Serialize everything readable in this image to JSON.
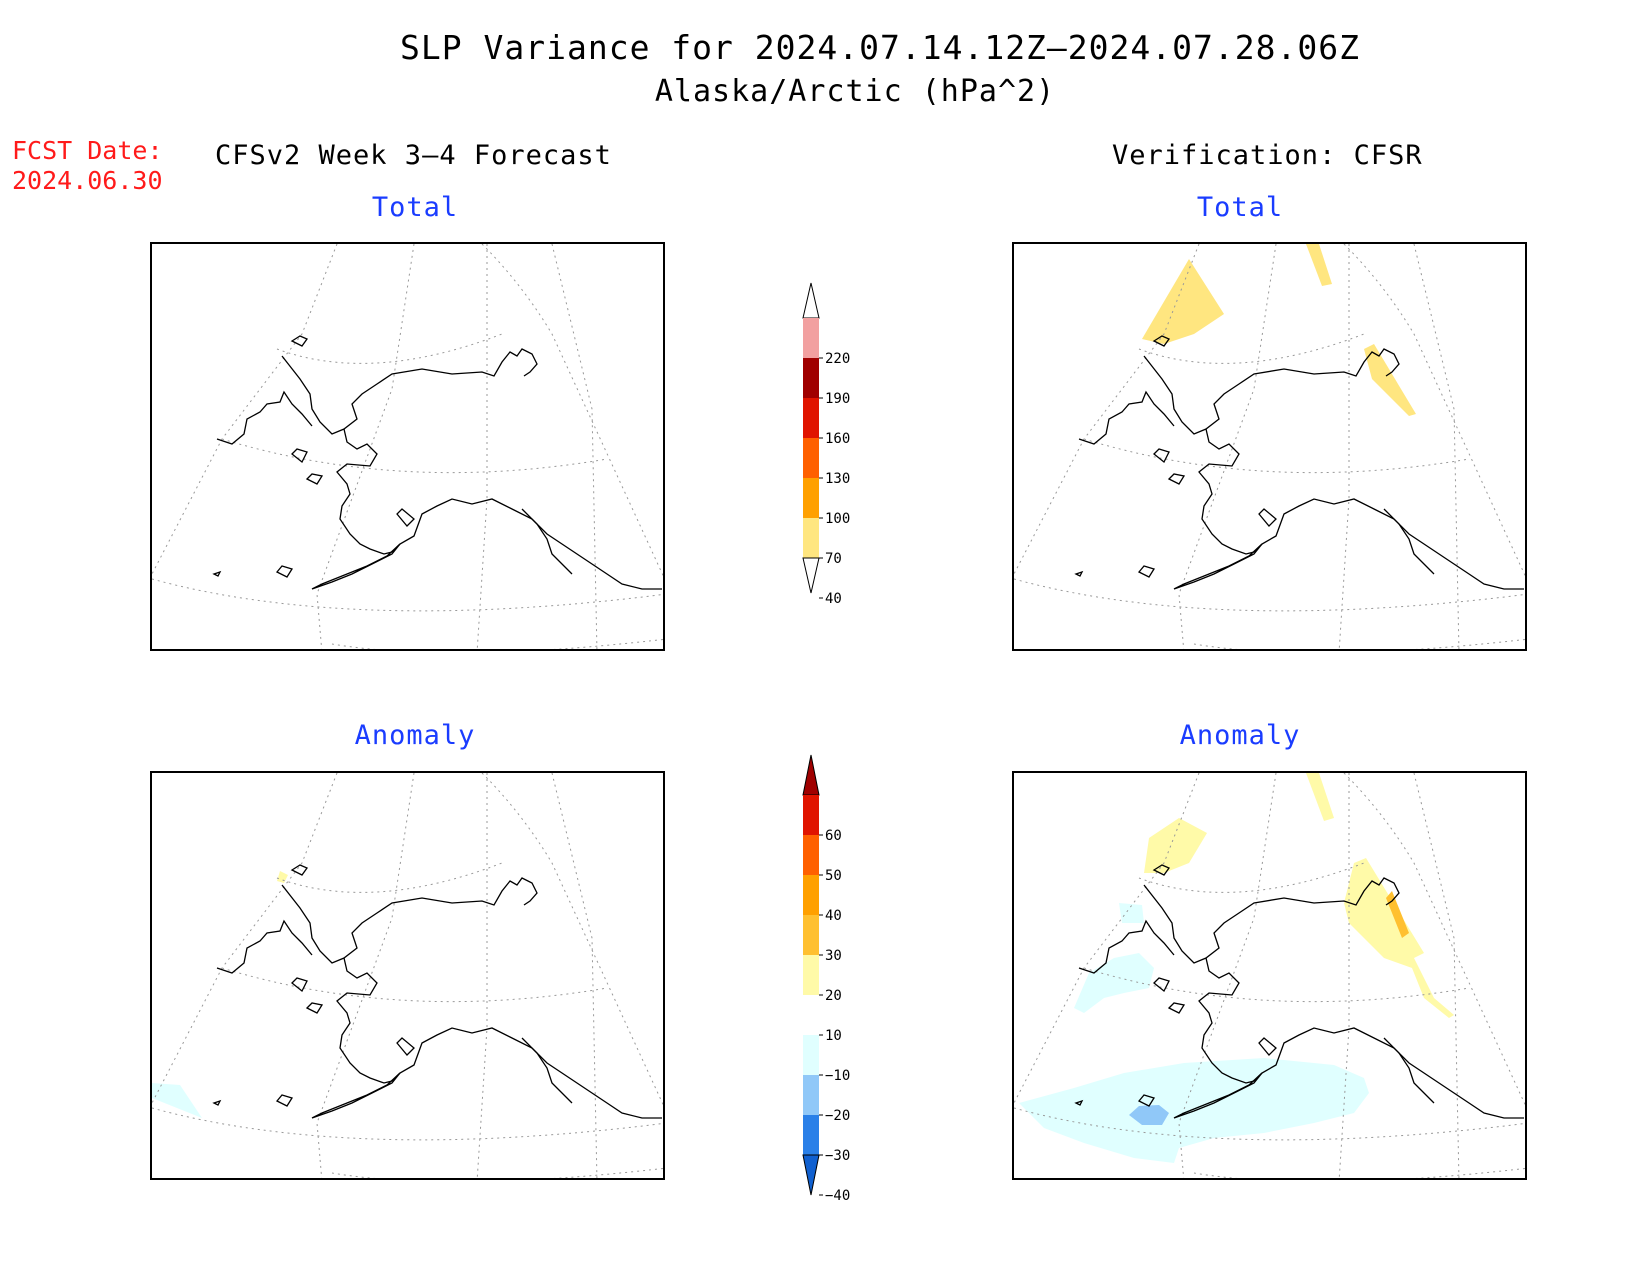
{
  "title": {
    "line1": "SLP Variance for 2024.07.14.12Z–2024.07.28.06Z",
    "line2": "Alaska/Arctic (hPa^2)"
  },
  "fcst_date": {
    "label": "FCST Date:",
    "value": "2024.06.30"
  },
  "columns": {
    "left": "CFSv2 Week 3–4 Forecast",
    "right": "Verification: CFSR"
  },
  "panels": {
    "fcst_total": "Total",
    "fcst_anomaly": "Anomaly",
    "verif_total": "Total",
    "verif_anomaly": "Anomaly"
  },
  "colorbars": {
    "total": {
      "levels": [
        "40",
        "70",
        "100",
        "130",
        "160",
        "190",
        "220"
      ],
      "colors": [
        "#ffe680",
        "#ffa000",
        "#ff6000",
        "#e01400",
        "#a00000",
        "#f2a0a0",
        "#fde2e2"
      ]
    },
    "anomaly": {
      "levels": [
        "−40",
        "−30",
        "−20",
        "−10",
        "10",
        "20",
        "30",
        "40",
        "50",
        "60"
      ],
      "colors": [
        "#1060d0",
        "#2a80e8",
        "#90c8f8",
        "#e0ffff",
        "#ffffff",
        "#fffaa8",
        "#ffc030",
        "#ffa000",
        "#ff6000",
        "#e01400",
        "#a00000"
      ]
    }
  },
  "shading_colors": {
    "total_40_70": "#ffe680",
    "anom_10_20": "#fffaa8",
    "anom_20_30": "#ffc030",
    "anom_m10_m20": "#e0ffff",
    "anom_m20_m30": "#90c8f8"
  }
}
